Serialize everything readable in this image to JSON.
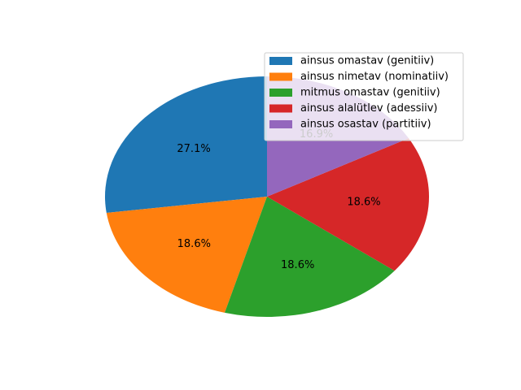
{
  "chart_data": {
    "type": "pie",
    "title": "",
    "legend_position": "top-right",
    "slices": [
      {
        "label": "ainsus omastav (genitiiv)",
        "value": 27.1,
        "pct_label": "27.1%",
        "color": "#1f77b4"
      },
      {
        "label": "ainsus nimetav (nominatiiv)",
        "value": 18.6,
        "pct_label": "18.6%",
        "color": "#ff7f0e"
      },
      {
        "label": "mitmus omastav (genitiiv)",
        "value": 18.6,
        "pct_label": "18.6%",
        "color": "#2ca02c"
      },
      {
        "label": "ainsus alalütlev (adessiiv)",
        "value": 18.6,
        "pct_label": "18.6%",
        "color": "#d62728"
      },
      {
        "label": "ainsus osastav (partitiiv)",
        "value": 16.9,
        "pct_label": "16.9%",
        "color": "#9467bd"
      }
    ]
  }
}
